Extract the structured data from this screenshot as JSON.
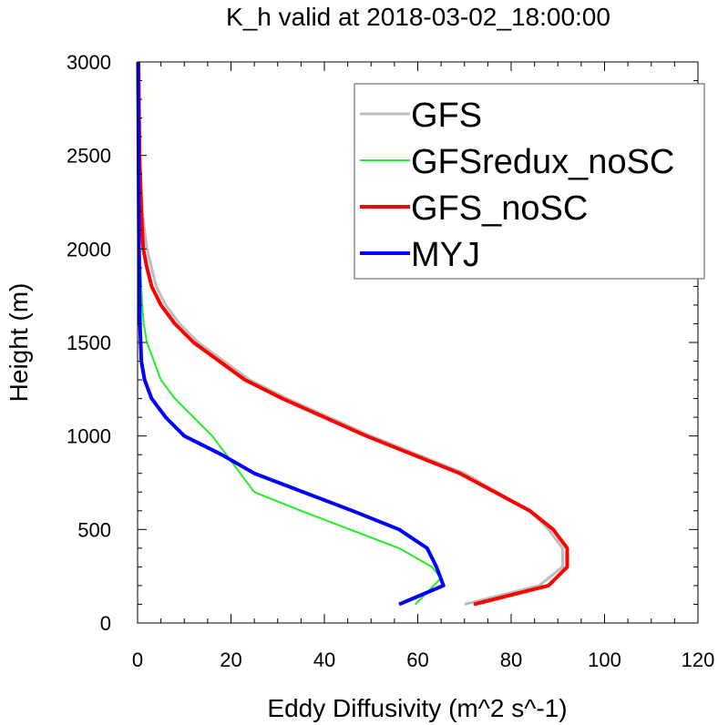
{
  "chart_data": {
    "type": "line",
    "title": "K_h valid at 2018-03-02_18:00:00",
    "xlabel": "Eddy Diffusivity (m^2 s^-1)",
    "ylabel": "Height (m)",
    "xlim": [
      0,
      120
    ],
    "ylim": [
      0,
      3000
    ],
    "x_ticks": [
      0,
      20,
      40,
      60,
      80,
      100,
      120
    ],
    "y_ticks": [
      0,
      500,
      1000,
      1500,
      2000,
      2500,
      3000
    ],
    "grid": false,
    "legend_position": "top-right",
    "series": [
      {
        "name": "GFS",
        "color": "#bdbdbd",
        "width": 3,
        "points": [
          [
            70,
            100
          ],
          [
            86,
            200
          ],
          [
            91,
            300
          ],
          [
            91,
            400
          ],
          [
            88,
            500
          ],
          [
            84,
            600
          ],
          [
            70,
            800
          ],
          [
            50,
            1000
          ],
          [
            32,
            1200
          ],
          [
            24,
            1300
          ],
          [
            13,
            1500
          ],
          [
            9,
            1600
          ],
          [
            6,
            1700
          ],
          [
            4,
            1800
          ],
          [
            3,
            1900
          ],
          [
            2,
            2000
          ],
          [
            1,
            2200
          ],
          [
            0.5,
            2500
          ],
          [
            0.3,
            3000
          ]
        ]
      },
      {
        "name": "GFSredux_noSC",
        "color": "#22ee22",
        "width": 2,
        "points": [
          [
            59.5,
            100
          ],
          [
            65,
            240
          ],
          [
            63,
            300
          ],
          [
            56,
            400
          ],
          [
            35,
            600
          ],
          [
            25,
            700
          ],
          [
            16,
            1000
          ],
          [
            8,
            1200
          ],
          [
            5,
            1300
          ],
          [
            2,
            1500
          ],
          [
            1.3,
            1600
          ],
          [
            1,
            1700
          ],
          [
            0.8,
            1800
          ],
          [
            0.5,
            2000
          ],
          [
            0.3,
            2500
          ],
          [
            0.2,
            3000
          ]
        ]
      },
      {
        "name": "GFS_noSC",
        "color": "#ff0000",
        "width": 4,
        "points": [
          [
            72,
            100
          ],
          [
            88,
            200
          ],
          [
            92,
            300
          ],
          [
            92,
            400
          ],
          [
            89,
            500
          ],
          [
            84,
            600
          ],
          [
            69,
            800
          ],
          [
            49,
            1000
          ],
          [
            31,
            1200
          ],
          [
            23,
            1300
          ],
          [
            12,
            1500
          ],
          [
            8,
            1600
          ],
          [
            5,
            1700
          ],
          [
            3,
            1800
          ],
          [
            2,
            1900
          ],
          [
            1.2,
            2000
          ],
          [
            0.8,
            2200
          ],
          [
            0.4,
            2500
          ],
          [
            0.2,
            3000
          ]
        ]
      },
      {
        "name": "MYJ",
        "color": "#0000ff",
        "width": 4,
        "points": [
          [
            56,
            100
          ],
          [
            65.5,
            200
          ],
          [
            64,
            300
          ],
          [
            62,
            400
          ],
          [
            56,
            500
          ],
          [
            46,
            600
          ],
          [
            25,
            800
          ],
          [
            18,
            900
          ],
          [
            10,
            1000
          ],
          [
            6,
            1100
          ],
          [
            3,
            1200
          ],
          [
            1.5,
            1300
          ],
          [
            0.8,
            1400
          ],
          [
            0.5,
            1600
          ],
          [
            0.3,
            2000
          ],
          [
            0.2,
            2500
          ],
          [
            0.1,
            3000
          ]
        ]
      }
    ]
  }
}
